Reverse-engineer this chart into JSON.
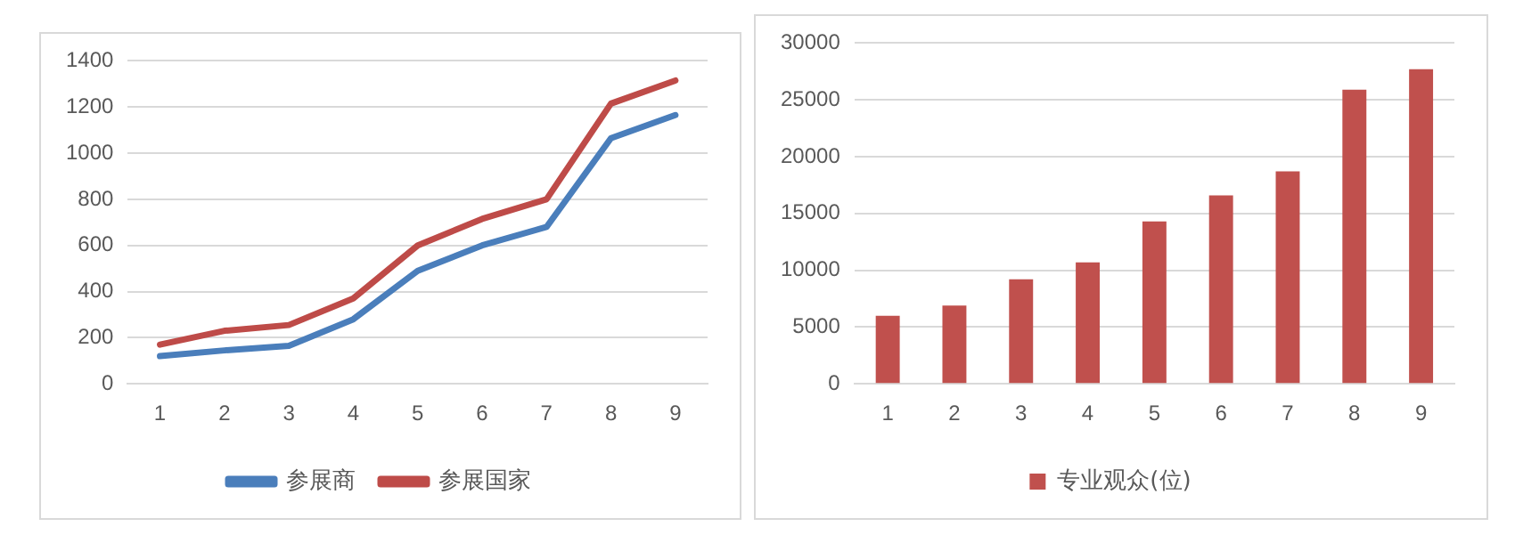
{
  "chart_data": [
    {
      "type": "line",
      "categories": [
        "1",
        "2",
        "3",
        "4",
        "5",
        "6",
        "7",
        "8",
        "9"
      ],
      "series": [
        {
          "name": "参展商",
          "color": "#4a7ebb",
          "values": [
            120,
            145,
            165,
            280,
            490,
            600,
            680,
            1065,
            1165
          ]
        },
        {
          "name": "参展国家",
          "color": "#be4b48",
          "values": [
            170,
            230,
            255,
            370,
            600,
            715,
            800,
            1215,
            1315
          ]
        }
      ],
      "ylim": [
        0,
        1400
      ],
      "yticks": [
        0,
        200,
        400,
        600,
        800,
        1000,
        1200,
        1400
      ],
      "grid": "y",
      "legend": "bottom",
      "marker": "none"
    },
    {
      "type": "bar",
      "categories": [
        "1",
        "2",
        "3",
        "4",
        "5",
        "6",
        "7",
        "8",
        "9"
      ],
      "series": [
        {
          "name": "专业观众(位)",
          "color": "#c0504d",
          "values": [
            6000,
            6900,
            9200,
            10700,
            14300,
            16600,
            18700,
            25900,
            27700
          ]
        }
      ],
      "ylim": [
        0,
        30000
      ],
      "yticks": [
        0,
        5000,
        10000,
        15000,
        20000,
        25000,
        30000
      ],
      "grid": "y",
      "legend": "bottom"
    }
  ]
}
